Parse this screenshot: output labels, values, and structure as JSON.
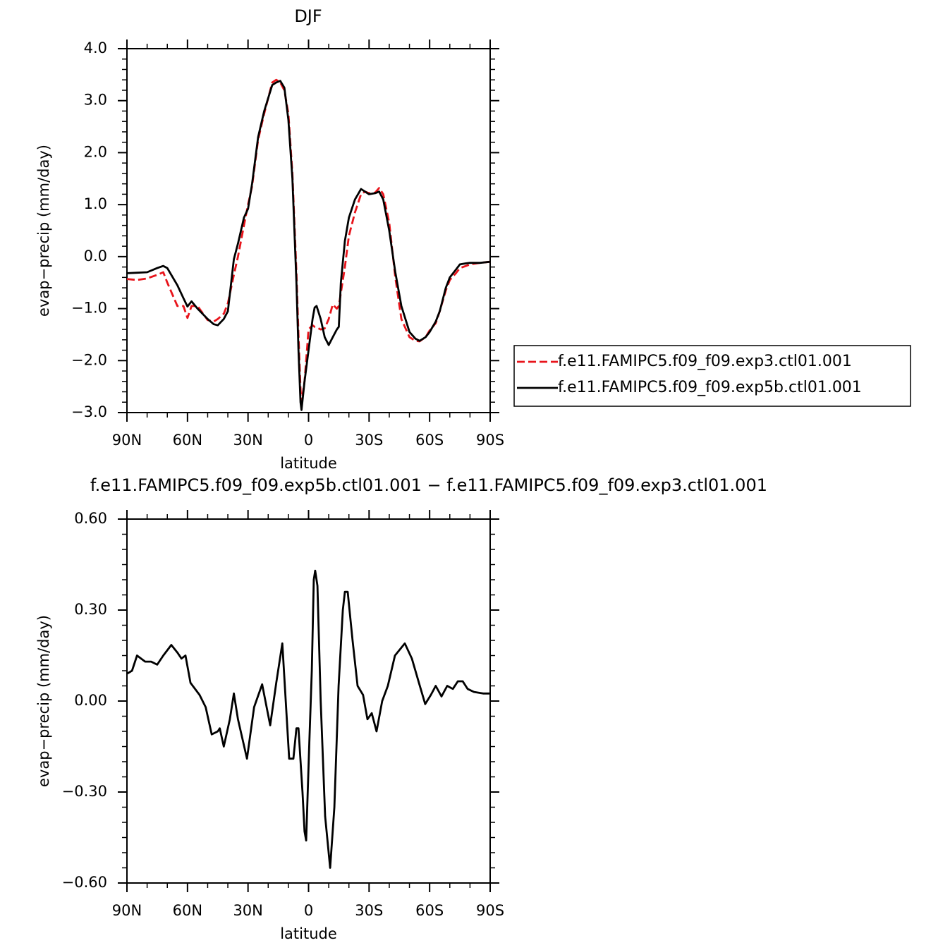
{
  "chart_data": [
    {
      "type": "line",
      "title": "DJF",
      "x_label": "latitude",
      "y_label": "evap−precip (mm/day)",
      "xlim": [
        90,
        -90
      ],
      "xticks": [
        {
          "value": 90,
          "label": "90N"
        },
        {
          "value": 60,
          "label": "60N"
        },
        {
          "value": 30,
          "label": "30N"
        },
        0,
        {
          "value": -30,
          "label": "30S"
        },
        {
          "value": -60,
          "label": "60S"
        },
        {
          "value": -90,
          "label": "90S"
        }
      ],
      "ylim": [
        -3,
        4
      ],
      "yticks": [
        {
          "value": -3,
          "label": "−3.0"
        },
        {
          "value": -2,
          "label": "−2.0"
        },
        {
          "value": -1,
          "label": "−1.0"
        },
        {
          "value": 0,
          "label": "0.0"
        },
        {
          "value": 1,
          "label": "1.0"
        },
        {
          "value": 2,
          "label": "2.0"
        },
        {
          "value": 3,
          "label": "3.0"
        },
        {
          "value": 4,
          "label": "4.0"
        }
      ],
      "legend": "outside-right",
      "x": [
        90,
        85,
        80,
        75,
        72,
        70,
        65,
        62,
        60,
        58,
        55,
        50,
        47,
        45,
        42,
        40,
        37,
        35,
        32,
        30,
        28,
        25,
        22,
        20,
        18,
        16,
        14,
        12,
        10,
        8,
        6,
        5,
        4,
        3.5,
        2,
        0,
        -2,
        -3,
        -4,
        -6,
        -8,
        -10,
        -12,
        -14,
        -15,
        -16,
        -18,
        -20,
        -23,
        -26,
        -28,
        -30,
        -33,
        -35,
        -37,
        -40,
        -43,
        -46,
        -50,
        -53,
        -55,
        -58,
        -60,
        -63,
        -65,
        -68,
        -70,
        -73,
        -75,
        -78,
        -80,
        -85,
        -90
      ],
      "series": [
        {
          "name": "f.e11.FAMIPC5.f09_f09.exp3.ctl01.001",
          "color": "#e8141b",
          "dashed": true,
          "values": [
            -0.43,
            -0.45,
            -0.42,
            -0.35,
            -0.3,
            -0.5,
            -0.95,
            -0.95,
            -1.18,
            -0.95,
            -0.95,
            -1.22,
            -1.25,
            -1.2,
            -1.1,
            -0.9,
            -0.35,
            0.0,
            0.6,
            1.0,
            1.35,
            2.25,
            2.75,
            3.05,
            3.35,
            3.4,
            3.35,
            3.2,
            2.75,
            1.6,
            -0.3,
            -1.5,
            -2.55,
            -2.8,
            -2.4,
            -1.4,
            -1.32,
            -1.35,
            -1.36,
            -1.4,
            -1.38,
            -1.2,
            -0.92,
            -1.0,
            -0.95,
            -0.7,
            -0.2,
            0.4,
            0.85,
            1.2,
            1.25,
            1.22,
            1.23,
            1.32,
            1.2,
            0.65,
            -0.4,
            -1.2,
            -1.55,
            -1.62,
            -1.63,
            -1.55,
            -1.42,
            -1.28,
            -1.05,
            -0.65,
            -0.45,
            -0.32,
            -0.22,
            -0.18,
            -0.15,
            -0.12,
            -0.1
          ]
        },
        {
          "name": "f.e11.FAMIPC5.f09_f09.exp5b.ctl01.001",
          "color": "#000000",
          "dashed": false,
          "values": [
            -0.32,
            -0.31,
            -0.3,
            -0.22,
            -0.18,
            -0.22,
            -0.55,
            -0.8,
            -0.96,
            -0.86,
            -1.0,
            -1.2,
            -1.3,
            -1.32,
            -1.2,
            -1.05,
            -0.05,
            0.25,
            0.75,
            0.92,
            1.4,
            2.3,
            2.8,
            3.05,
            3.3,
            3.35,
            3.38,
            3.25,
            2.63,
            1.5,
            -0.5,
            -1.8,
            -2.8,
            -2.95,
            -2.4,
            -1.8,
            -1.2,
            -0.98,
            -0.95,
            -1.2,
            -1.55,
            -1.7,
            -1.55,
            -1.4,
            -1.35,
            -0.5,
            0.3,
            0.75,
            1.1,
            1.3,
            1.25,
            1.2,
            1.22,
            1.25,
            1.1,
            0.5,
            -0.3,
            -0.95,
            -1.45,
            -1.58,
            -1.62,
            -1.55,
            -1.45,
            -1.25,
            -1.05,
            -0.6,
            -0.4,
            -0.25,
            -0.15,
            -0.13,
            -0.12,
            -0.12,
            -0.1
          ]
        }
      ]
    },
    {
      "type": "line",
      "title": "f.e11.FAMIPC5.f09_f09.exp5b.ctl01.001 − f.e11.FAMIPC5.f09_f09.exp3.ctl01.001",
      "x_label": "latitude",
      "y_label": "evap−precip (mm/day)",
      "xlim": [
        90,
        -90
      ],
      "xticks": [
        {
          "value": 90,
          "label": "90N"
        },
        {
          "value": 60,
          "label": "60N"
        },
        {
          "value": 30,
          "label": "30N"
        },
        0,
        {
          "value": -30,
          "label": "30S"
        },
        {
          "value": -60,
          "label": "60S"
        },
        {
          "value": -90,
          "label": "90S"
        }
      ],
      "ylim": [
        -0.6,
        0.6
      ],
      "yticks": [
        {
          "value": -0.6,
          "label": "−0.60"
        },
        {
          "value": -0.3,
          "label": "−0.30"
        },
        {
          "value": 0,
          "label": "0.00"
        },
        {
          "value": 0.3,
          "label": "0.30"
        },
        {
          "value": 0.6,
          "label": "0.60"
        }
      ],
      "x": [
        90,
        87.5,
        85,
        81,
        78,
        75,
        72,
        68,
        65,
        63,
        61,
        58.5,
        54,
        51,
        48,
        45,
        44,
        42,
        39,
        37,
        35,
        30.5,
        27,
        23,
        19,
        16,
        13,
        9.6,
        7.5,
        6,
        5,
        3,
        2,
        1.2,
        -0.3,
        -1.6,
        -2.6,
        -3.3,
        -4.4,
        -6,
        -8.2,
        -10.7,
        -12.8,
        -14.9,
        -17,
        -18,
        -19.4,
        -21.8,
        -24.3,
        -27,
        -29.2,
        -31.3,
        -33.7,
        -36.5,
        -39.3,
        -42.8,
        -47.7,
        -51.2,
        -54.7,
        -57.8,
        -60.6,
        -63,
        -65.9,
        -68.7,
        -71.5,
        -74,
        -76.4,
        -78.8,
        -82,
        -86.5,
        -90
      ],
      "series": [
        {
          "color": "#000000",
          "dashed": false,
          "values": [
            0.09,
            0.1,
            0.15,
            0.13,
            0.13,
            0.12,
            0.15,
            0.185,
            0.16,
            0.14,
            0.15,
            0.06,
            0.02,
            -0.02,
            -0.11,
            -0.1,
            -0.09,
            -0.15,
            -0.06,
            0.025,
            -0.06,
            -0.19,
            -0.02,
            0.055,
            -0.08,
            0.06,
            0.19,
            -0.19,
            -0.19,
            -0.09,
            -0.09,
            -0.3,
            -0.43,
            -0.46,
            -0.15,
            0.1,
            0.4,
            0.43,
            0.38,
            0,
            -0.38,
            -0.55,
            -0.35,
            0.05,
            0.3,
            0.36,
            0.36,
            0.2,
            0.05,
            0.02,
            -0.06,
            -0.04,
            -0.1,
            0,
            0.05,
            0.15,
            0.19,
            0.14,
            0.06,
            -0.01,
            0.02,
            0.05,
            0.015,
            0.05,
            0.04,
            0.065,
            0.065,
            0.04,
            0.03,
            0.025,
            0.025
          ]
        }
      ]
    }
  ]
}
